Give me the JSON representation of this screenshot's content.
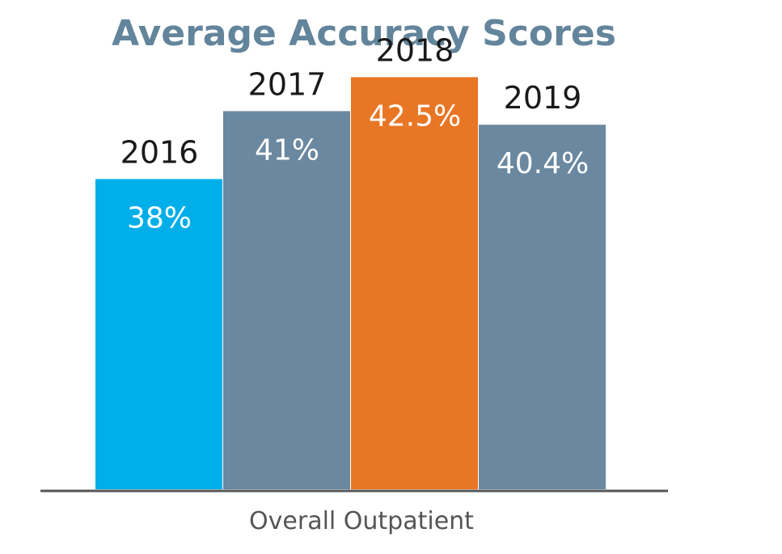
{
  "chart_data": {
    "type": "bar",
    "title": "Average Accuracy Scores",
    "category": "Overall Outpatient",
    "xlabel": "",
    "ylabel": "",
    "ylim": [
      30,
      45
    ],
    "grid": false,
    "series": [
      {
        "name": "2016",
        "value": 38,
        "label": "38%",
        "color": "#00aee9"
      },
      {
        "name": "2017",
        "value": 41,
        "label": "41%",
        "color": "#6a88a0"
      },
      {
        "name": "2018",
        "value": 42.5,
        "label": "42.5%",
        "color": "#e97624"
      },
      {
        "name": "2019",
        "value": 40.4,
        "label": "40.4%",
        "color": "#6a88a0"
      }
    ]
  },
  "colors": {
    "title": "#63859c",
    "axis": "#555555"
  }
}
